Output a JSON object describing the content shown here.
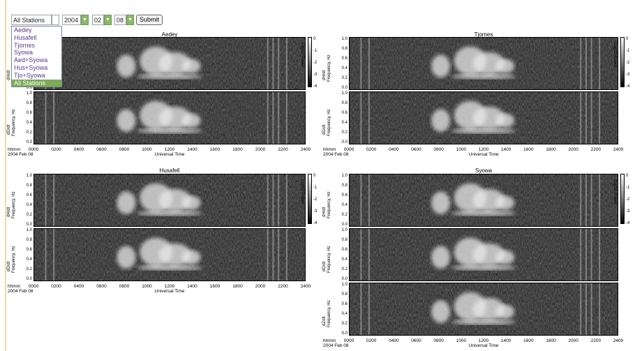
{
  "controls": {
    "station_value": "All Stations",
    "year_value": "2004",
    "month_value": "02",
    "day_value": "08",
    "submit_label": "Submit"
  },
  "station_options": [
    "Aedey",
    "Husafell",
    "Tjornes",
    "Syowa",
    "Aed+Syowa",
    "Hus+Syowa",
    "Tjo+Syowa",
    "All Stations"
  ],
  "axis": {
    "hhmm": "hhmm",
    "date": "2004 Feb 08",
    "ut_label": "Universal Time",
    "time_ticks": [
      "0000",
      "0200",
      "0400",
      "0600",
      "0800",
      "1000",
      "1200",
      "1400",
      "1600",
      "1800",
      "2000",
      "2200",
      "2400"
    ],
    "freq_ticks": [
      "1.0",
      "0.8",
      "0.6",
      "0.4",
      "0.2",
      "0.0"
    ],
    "freq_label": "Frequency, Hz",
    "dh_label": "dH/dt",
    "dd_label": "dD/dt",
    "dz_label": "dZ/dt",
    "power_label": "Log10 Power",
    "power_ticks": [
      "0",
      "-1",
      "-2",
      "-3",
      "-4"
    ]
  },
  "panels": {
    "aedey": {
      "title": "Aedey"
    },
    "tjornes": {
      "title": "Tjornes"
    },
    "husafell": {
      "title": "Husafell"
    },
    "syowa": {
      "title": "Syowa"
    }
  },
  "colors": {
    "accent": "#7cab58",
    "option_text": "#5a3a8a"
  }
}
